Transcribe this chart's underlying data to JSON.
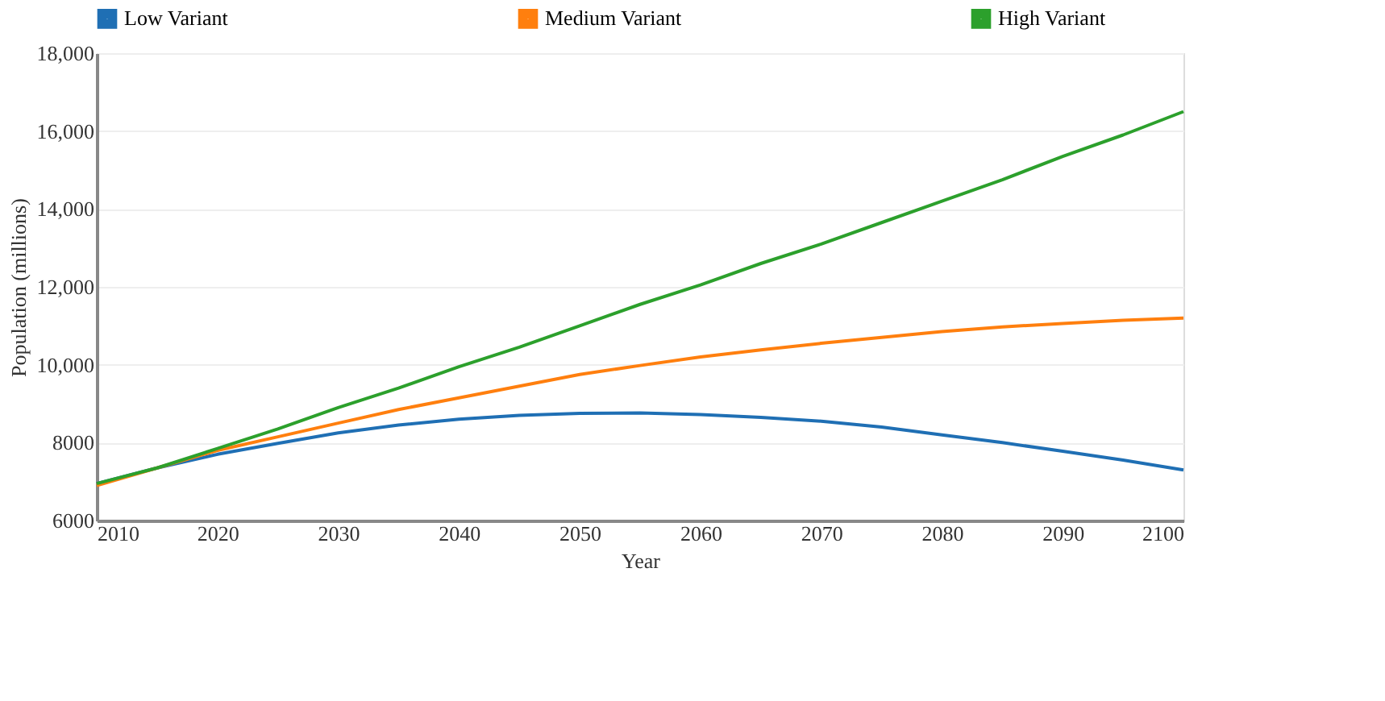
{
  "chart_data": {
    "type": "line",
    "xlabel": "Year",
    "ylabel": "Population (millions)",
    "x": [
      2010,
      2015,
      2020,
      2025,
      2030,
      2035,
      2040,
      2045,
      2050,
      2055,
      2060,
      2065,
      2070,
      2075,
      2080,
      2085,
      2090,
      2095,
      2100
    ],
    "series": [
      {
        "name": "Low Variant",
        "color": "#1f6fb4",
        "values": [
          6950,
          7350,
          7700,
          7980,
          8250,
          8450,
          8600,
          8700,
          8750,
          8760,
          8720,
          8650,
          8550,
          8400,
          8200,
          8000,
          7780,
          7550,
          7300
        ]
      },
      {
        "name": "Medium Variant",
        "color": "#ff7f0e",
        "values": [
          6900,
          7350,
          7800,
          8150,
          8500,
          8850,
          9150,
          9450,
          9750,
          9980,
          10200,
          10380,
          10550,
          10700,
          10850,
          10970,
          11060,
          11140,
          11200
        ]
      },
      {
        "name": "High Variant",
        "color": "#2ca02c",
        "values": [
          6950,
          7350,
          7850,
          8350,
          8900,
          9400,
          9950,
          10450,
          11000,
          11550,
          12050,
          12600,
          13100,
          13650,
          14200,
          14750,
          15350,
          15900,
          16500
        ]
      }
    ],
    "xlim": [
      2010,
      2100
    ],
    "xticks": [
      2010,
      2020,
      2030,
      2040,
      2050,
      2060,
      2070,
      2080,
      2090,
      2100
    ],
    "ylim": [
      6000,
      18000
    ],
    "yticks": [
      6000,
      8000,
      {
        "value": 10000,
        "label": "10,000"
      },
      {
        "value": 12000,
        "label": "12,000"
      },
      {
        "value": 14000,
        "label": "14,000"
      },
      {
        "value": 16000,
        "label": "16,000"
      },
      {
        "value": 18000,
        "label": "18,000"
      }
    ],
    "grid": "y",
    "legend": "top",
    "marker": "none",
    "line_style": "solid"
  }
}
